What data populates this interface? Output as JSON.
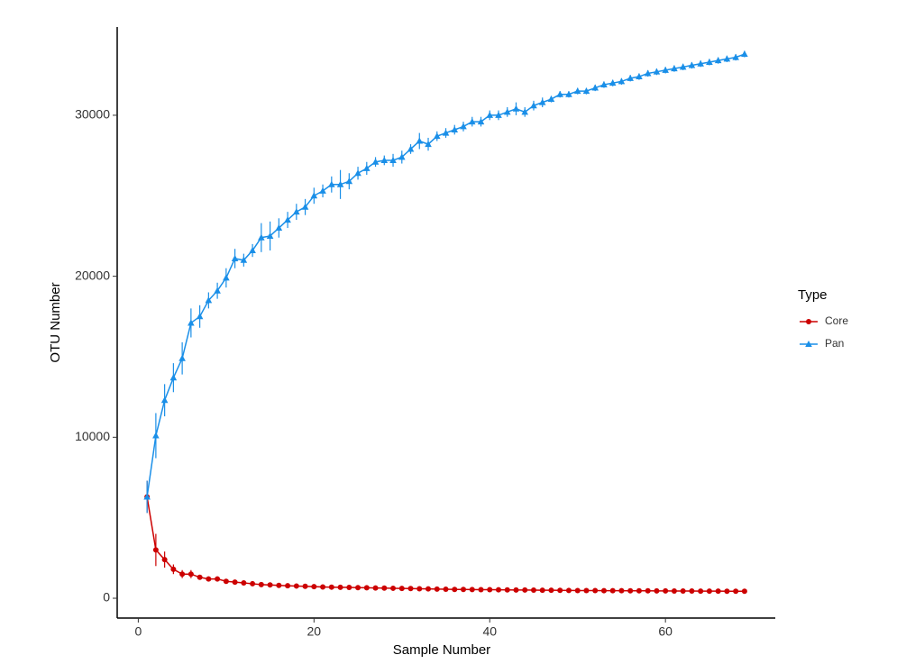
{
  "chart_data": {
    "type": "line",
    "xlabel": "Sample Number",
    "ylabel": "OTU Number",
    "legend_title": "Type",
    "legend_position": "right",
    "x": [
      1,
      2,
      3,
      4,
      5,
      6,
      7,
      8,
      9,
      10,
      11,
      12,
      13,
      14,
      15,
      16,
      17,
      18,
      19,
      20,
      21,
      22,
      23,
      24,
      25,
      26,
      27,
      28,
      29,
      30,
      31,
      32,
      33,
      34,
      35,
      36,
      37,
      38,
      39,
      40,
      41,
      42,
      43,
      44,
      45,
      46,
      47,
      48,
      49,
      50,
      51,
      52,
      53,
      54,
      55,
      56,
      57,
      58,
      59,
      60,
      61,
      62,
      63,
      64,
      65,
      66,
      67,
      68,
      69
    ],
    "series": [
      {
        "name": "Core",
        "color": "#cc0000",
        "marker": "circle",
        "values": [
          6300,
          3000,
          2400,
          1800,
          1500,
          1500,
          1300,
          1200,
          1200,
          1050,
          1000,
          950,
          900,
          850,
          830,
          800,
          780,
          760,
          740,
          720,
          700,
          690,
          680,
          670,
          660,
          650,
          640,
          630,
          620,
          610,
          600,
          590,
          580,
          570,
          560,
          550,
          545,
          540,
          535,
          530,
          525,
          520,
          515,
          510,
          505,
          500,
          495,
          490,
          485,
          480,
          478,
          475,
          472,
          470,
          467,
          465,
          462,
          460,
          457,
          455,
          452,
          450,
          447,
          445,
          442,
          440,
          437,
          435,
          432
        ],
        "errors": [
          1000,
          1000,
          500,
          300,
          250,
          250,
          150,
          150,
          150,
          100,
          100,
          100,
          80,
          80,
          80,
          80,
          80,
          80,
          80,
          80,
          80,
          80,
          80,
          80,
          80,
          80,
          80,
          80,
          80,
          80,
          60,
          60,
          60,
          60,
          60,
          60,
          60,
          60,
          60,
          60,
          60,
          60,
          60,
          60,
          60,
          60,
          60,
          60,
          60,
          60,
          60,
          60,
          60,
          60,
          60,
          60,
          60,
          60,
          60,
          60,
          60,
          60,
          60,
          60,
          60,
          60,
          60,
          60,
          60
        ]
      },
      {
        "name": "Pan",
        "color": "#1a8fe8",
        "marker": "triangle",
        "values": [
          6300,
          10100,
          12300,
          13700,
          14900,
          17100,
          17500,
          18500,
          19100,
          19900,
          21100,
          21000,
          21600,
          22400,
          22500,
          23000,
          23500,
          24000,
          24300,
          25000,
          25300,
          25700,
          25700,
          25900,
          26400,
          26700,
          27100,
          27200,
          27200,
          27400,
          27900,
          28400,
          28200,
          28700,
          28900,
          29100,
          29300,
          29600,
          29600,
          30000,
          30000,
          30200,
          30400,
          30200,
          30600,
          30800,
          31000,
          31300,
          31300,
          31500,
          31500,
          31700,
          31900,
          32000,
          32100,
          32300,
          32400,
          32600,
          32700,
          32800,
          32900,
          33000,
          33100,
          33200,
          33300,
          33400,
          33500,
          33600,
          33800
        ],
        "errors": [
          1000,
          1400,
          1000,
          900,
          1000,
          900,
          700,
          500,
          500,
          600,
          600,
          400,
          400,
          900,
          900,
          600,
          500,
          500,
          500,
          500,
          400,
          500,
          900,
          500,
          400,
          400,
          300,
          300,
          400,
          400,
          300,
          500,
          400,
          300,
          300,
          300,
          300,
          300,
          300,
          300,
          300,
          300,
          400,
          300,
          300,
          300,
          200,
          200,
          200,
          200,
          200,
          200,
          200,
          200,
          200,
          200,
          200,
          200,
          200,
          200,
          200,
          200,
          200,
          200,
          200,
          200,
          200,
          200,
          200
        ]
      }
    ],
    "xlim": [
      -2.4,
      72.5
    ],
    "xticks": [
      0,
      20,
      40,
      60
    ],
    "ylim": [
      -1230,
      35480
    ],
    "yticks": [
      0,
      10000,
      20000,
      30000
    ],
    "grid": false
  }
}
